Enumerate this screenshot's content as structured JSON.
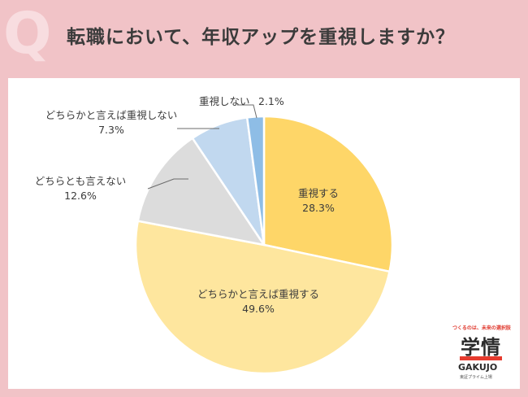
{
  "header": {
    "q_mark": "Q",
    "title": "転職において、年収アップを重視しますか？"
  },
  "colors": {
    "background": "#f1c3c7",
    "card": "#ffffff",
    "slices": [
      "#fed668",
      "#fee69e",
      "#dcdcdc",
      "#c1d8ef",
      "#8ebde6"
    ],
    "logo_red": "#e63b2e"
  },
  "chart_data": {
    "type": "pie",
    "title": "",
    "start": "12 o'clock",
    "direction": "clockwise",
    "slices": [
      {
        "label": "重視する",
        "value": 28.3,
        "value_text": "28.3%"
      },
      {
        "label": "どちらかと言えば重視する",
        "value": 49.6,
        "value_text": "49.6%"
      },
      {
        "label": "どちらとも言えない",
        "value": 12.6,
        "value_text": "12.6%"
      },
      {
        "label": "どちらかと言えば重視しない",
        "value": 7.3,
        "value_text": "7.3%"
      },
      {
        "label": "重視しない",
        "value": 2.1,
        "value_text": "2.1%"
      }
    ]
  },
  "logo": {
    "tagline": "つくるのは、未来の選択肢",
    "name": "学情",
    "romaji": "GAKUJO",
    "footer": "東証プライム上場"
  }
}
